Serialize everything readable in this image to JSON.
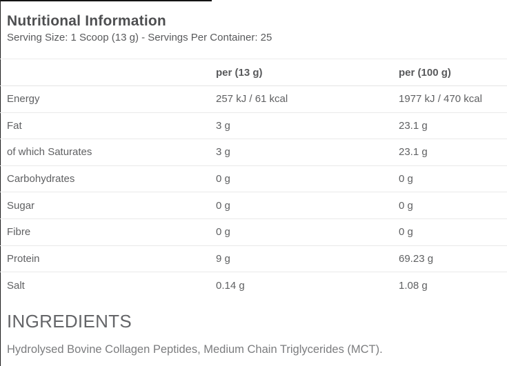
{
  "page": {
    "title": "Nutritional Information",
    "serving_info": "Serving Size: 1 Scoop (13 g) - Servings Per Container: 25"
  },
  "table": {
    "columns": [
      "",
      "per (13 g)",
      "per (100 g)"
    ],
    "rows": [
      {
        "label": "Energy",
        "per_serving": "257 kJ / 61 kcal",
        "per_100g": "1977 kJ / 470 kcal"
      },
      {
        "label": "Fat",
        "per_serving": "3 g",
        "per_100g": "23.1 g"
      },
      {
        "label": "of which Saturates",
        "per_serving": "3 g",
        "per_100g": "23.1 g"
      },
      {
        "label": "Carbohydrates",
        "per_serving": "0 g",
        "per_100g": "0 g"
      },
      {
        "label": "Sugar",
        "per_serving": "0 g",
        "per_100g": "0 g"
      },
      {
        "label": "Fibre",
        "per_serving": "0 g",
        "per_100g": "0 g"
      },
      {
        "label": "Protein",
        "per_serving": "9 g",
        "per_100g": "69.23 g"
      },
      {
        "label": "Salt",
        "per_serving": "0.14 g",
        "per_100g": "1.08 g"
      }
    ]
  },
  "ingredients": {
    "heading": "INGREDIENTS",
    "text": "Hydrolysed Bovine Collagen Peptides, Medium Chain Triglycerides (MCT)."
  },
  "colors": {
    "title_text": "#4e4f51",
    "body_text": "#5f6062",
    "divider": "#e9e9e9",
    "edge_border": "#141414",
    "background": "#ffffff"
  }
}
